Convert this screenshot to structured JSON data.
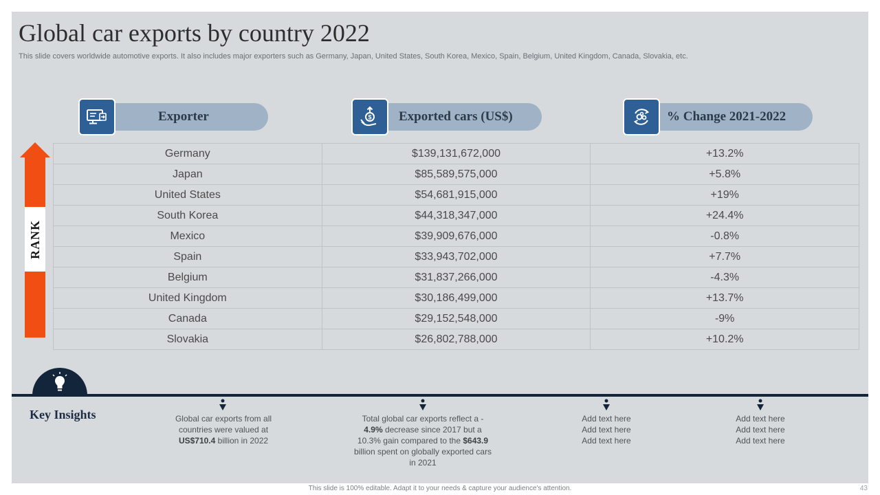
{
  "title": "Global car exports by country 2022",
  "subtitle": "This slide covers worldwide automotive exports. It also includes major exporters such as Germany, Japan, United States, South Korea, Mexico, Spain, Belgium, United Kingdom, Canada, Slovakia, etc.",
  "rank_label": "RANK",
  "headers": {
    "exporter": "Exporter",
    "exported": "Exported cars (US$)",
    "change": "% Change 2021-2022"
  },
  "rows": [
    {
      "country": "Germany",
      "value": "$139,131,672,000",
      "change": "+13.2%"
    },
    {
      "country": "Japan",
      "value": "$85,589,575,000",
      "change": "+5.8%"
    },
    {
      "country": "United States",
      "value": "$54,681,915,000",
      "change": "+19%"
    },
    {
      "country": "South Korea",
      "value": "$44,318,347,000",
      "change": "+24.4%"
    },
    {
      "country": "Mexico",
      "value": "$39,909,676,000",
      "change": "-0.8%"
    },
    {
      "country": "Spain",
      "value": "$33,943,702,000",
      "change": "+7.7%"
    },
    {
      "country": "Belgium",
      "value": "$31,837,266,000",
      "change": "-4.3%"
    },
    {
      "country": "United Kingdom",
      "value": "$30,186,499,000",
      "change": "+13.7%"
    },
    {
      "country": "Canada",
      "value": "$29,152,548,000",
      "change": "-9%"
    },
    {
      "country": "Slovakia",
      "value": "$26,802,788,000",
      "change": "+10.2%"
    }
  ],
  "key_insights": {
    "title": "Key Insights",
    "insight1": {
      "t1": "Global car exports from all countries were valued at ",
      "b1": "US$710.4",
      "t2": " billion in 2022"
    },
    "insight2": {
      "t1": "Total global car exports reflect a - ",
      "b1": "4.9%",
      "t2": " decrease since 2017 but a 10.3% gain compared to the ",
      "b2": "$643.9",
      "t3": " billion spent on globally exported cars in 2021"
    },
    "insight3": [
      "Add text here",
      "Add text here",
      "Add text here"
    ],
    "insight4": [
      "Add text here",
      "Add text here",
      "Add text here"
    ]
  },
  "footer": "This slide is 100% editable. Adapt it to your needs & capture your audience's attention.",
  "page_number": "43",
  "colors": {
    "background": "#d7dadd",
    "header_pill": "#9fb2c6",
    "icon_box": "#2f6095",
    "rank_arrow": "#f04e12",
    "navy": "#13253a"
  }
}
